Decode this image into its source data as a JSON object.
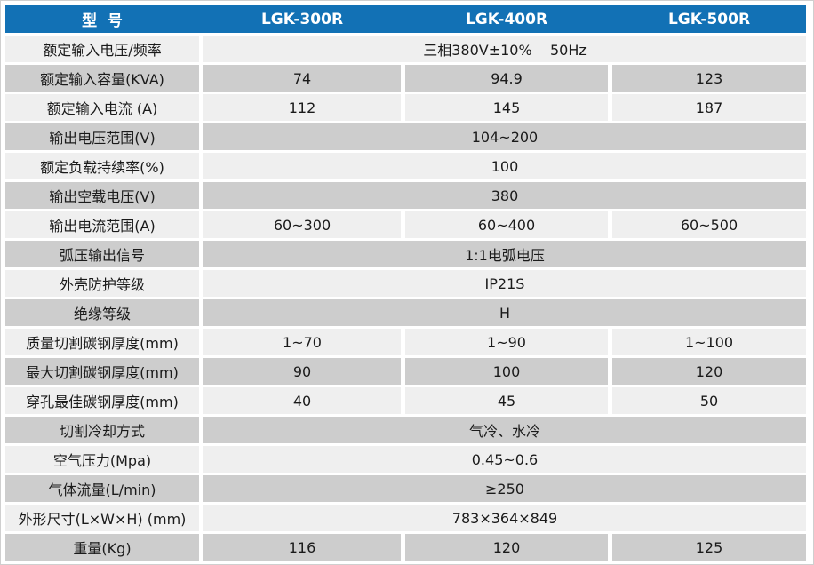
{
  "table": {
    "title": "LGK series plasma cutting machine specification table",
    "header": {
      "model_label": "型  号",
      "models": [
        "LGK-300R",
        "LGK-400R",
        "LGK-500R"
      ]
    },
    "rows": [
      {
        "label": "额定输入电压/频率",
        "values": [
          "三相380V±10%    50Hz"
        ]
      },
      {
        "label": "额定输入容量(KVA)",
        "values": [
          "74",
          "94.9",
          "123"
        ]
      },
      {
        "label": "额定输入电流 (A)",
        "values": [
          "112",
          "145",
          "187"
        ]
      },
      {
        "label": "输出电压范围(V)",
        "values": [
          "104~200"
        ]
      },
      {
        "label": "额定负载持续率(%)",
        "values": [
          "100"
        ]
      },
      {
        "label": "输出空载电压(V)",
        "values": [
          "380"
        ]
      },
      {
        "label": "输出电流范围(A)",
        "values": [
          "60~300",
          "60~400",
          "60~500"
        ]
      },
      {
        "label": "弧压输出信号",
        "values": [
          "1:1电弧电压"
        ]
      },
      {
        "label": "外壳防护等级",
        "values": [
          "IP21S"
        ]
      },
      {
        "label": "绝缘等级",
        "values": [
          "H"
        ]
      },
      {
        "label": "质量切割碳钢厚度(mm)",
        "values": [
          "1~70",
          "1~90",
          "1~100"
        ]
      },
      {
        "label": "最大切割碳钢厚度(mm)",
        "values": [
          "90",
          "100",
          "120"
        ]
      },
      {
        "label": "穿孔最佳碳钢厚度(mm)",
        "values": [
          "40",
          "45",
          "50"
        ]
      },
      {
        "label": "切割冷却方式",
        "values": [
          "气冷、水冷"
        ]
      },
      {
        "label": "空气压力(Mpa)",
        "values": [
          "0.45~0.6"
        ]
      },
      {
        "label": "气体流量(L/min)",
        "values": [
          "≥250"
        ]
      },
      {
        "label": "外形尺寸(L×W×H) (mm)",
        "values": [
          "783×364×849"
        ]
      },
      {
        "label": "重量(Kg)",
        "values": [
          "116",
          "120",
          "125"
        ]
      }
    ],
    "colors": {
      "header_bg": "#1271b5",
      "header_text": "#ffffff",
      "row_light": "#efefef",
      "row_dark": "#cdcdcd",
      "text": "#1a1a1a",
      "gap": "#ffffff"
    }
  }
}
